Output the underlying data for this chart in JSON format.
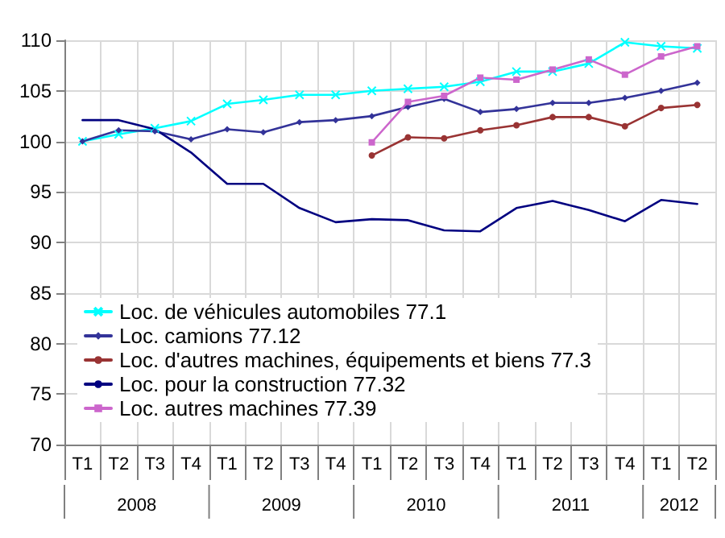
{
  "chart_data": {
    "type": "line",
    "categories": [
      "T1",
      "T2",
      "T3",
      "T4",
      "T1",
      "T2",
      "T3",
      "T4",
      "T1",
      "T2",
      "T3",
      "T4",
      "T1",
      "T2",
      "T3",
      "T4",
      "T1",
      "T2"
    ],
    "annotations": [
      "2008",
      "2009",
      "2010",
      "2011",
      "2012"
    ],
    "ylim": [
      70,
      110
    ],
    "yticks": [
      70,
      75,
      80,
      85,
      90,
      95,
      100,
      105,
      110
    ],
    "grid": true,
    "legend": "bottom left",
    "series": [
      {
        "name": "Loc. de véhicules automobiles 77.1",
        "color": "#00ffff",
        "marker": "cross",
        "values": [
          100,
          100.7,
          101.3,
          102,
          103.7,
          104.1,
          104.6,
          104.6,
          105.0,
          105.2,
          105.4,
          105.9,
          106.9,
          106.9,
          107.7,
          109.8,
          109.4,
          109.2
        ]
      },
      {
        "name": "Loc. camions 77.12",
        "color": "#333399",
        "marker": "diamond",
        "values": [
          100,
          101.1,
          101.0,
          100.2,
          101.2,
          100.9,
          101.9,
          102.1,
          102.5,
          103.4,
          104.2,
          102.9,
          103.2,
          103.8,
          103.8,
          104.3,
          105.0,
          105.8
        ]
      },
      {
        "name": "Loc. d'autres machines, équipements et biens 77.3",
        "color": "#993333",
        "marker": "circle",
        "values": [
          null,
          null,
          null,
          null,
          null,
          null,
          null,
          null,
          98.6,
          100.4,
          100.3,
          101.1,
          101.6,
          102.4,
          102.4,
          101.5,
          103.3,
          103.6
        ]
      },
      {
        "name": "Loc. pour la construction 77.32",
        "color": "#000080",
        "marker": "none",
        "values": [
          102.1,
          102.1,
          101.2,
          98.9,
          95.8,
          95.8,
          93.4,
          92.0,
          92.3,
          92.2,
          91.2,
          91.1,
          93.4,
          94.1,
          93.2,
          92.1,
          94.2,
          93.8
        ]
      },
      {
        "name": "Loc. autres machines 77.39",
        "color": "#cc66cc",
        "marker": "square",
        "values": [
          null,
          null,
          null,
          null,
          null,
          null,
          null,
          null,
          99.9,
          103.9,
          104.5,
          106.3,
          106.1,
          107.1,
          108.1,
          106.6,
          108.4,
          109.4
        ]
      }
    ]
  }
}
